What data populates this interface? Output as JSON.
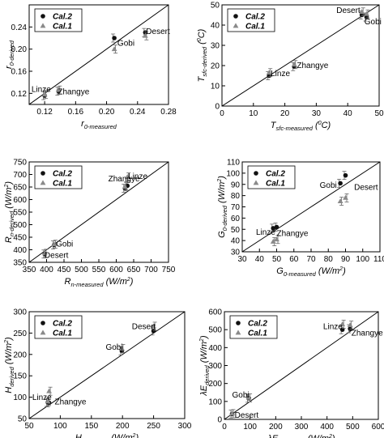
{
  "chart_data": [
    {
      "type": "scatter",
      "xlim": [
        0.1,
        0.28
      ],
      "ylim": [
        0.1,
        0.28
      ],
      "xticks": [
        0.12,
        0.16,
        0.2,
        0.24,
        0.28
      ],
      "yticks": [
        0.12,
        0.16,
        0.2,
        0.24
      ],
      "xticklabels": [
        "0.12",
        "0.16",
        "0.20",
        "0.24",
        "0.28"
      ],
      "yticklabels": [
        "0.12",
        "0.16",
        "0.20",
        "0.24"
      ],
      "xlabel": {
        "main": "r",
        "sub": "0-measured",
        "tail": ""
      },
      "ylabel": {
        "main": "r",
        "sub": "0-derived",
        "tail": ""
      },
      "legend_position": "top-left",
      "one_to_one_line": true,
      "series": [
        {
          "name": "Cal.2",
          "marker": "circle",
          "points": [
            {
              "label": "Linze",
              "x": 0.12,
              "y": 0.116
            },
            {
              "label": "Zhangye",
              "x": 0.138,
              "y": 0.124
            },
            {
              "label": "Gobi",
              "x": 0.21,
              "y": 0.22
            },
            {
              "label": "Desert",
              "x": 0.25,
              "y": 0.23
            }
          ]
        },
        {
          "name": "Cal.1",
          "marker": "triangle",
          "points": [
            {
              "label": "Linze",
              "x": 0.12,
              "y": 0.118
            },
            {
              "label": "Zhangye",
              "x": 0.138,
              "y": 0.126
            },
            {
              "label": "Gobi",
              "x": 0.21,
              "y": 0.2
            },
            {
              "label": "Desert",
              "x": 0.25,
              "y": 0.224
            }
          ]
        }
      ],
      "point_labels": [
        {
          "text": "Linze",
          "x": 0.103,
          "y": 0.123
        },
        {
          "text": "Zhangye",
          "x": 0.137,
          "y": 0.118
        },
        {
          "text": "Gobi",
          "x": 0.214,
          "y": 0.206
        },
        {
          "text": "Desert",
          "x": 0.251,
          "y": 0.227
        }
      ]
    },
    {
      "type": "scatter",
      "xlim": [
        0,
        50
      ],
      "ylim": [
        0,
        50
      ],
      "xticks": [
        0,
        10,
        20,
        30,
        40,
        50
      ],
      "yticks": [
        0,
        10,
        20,
        30,
        40,
        50
      ],
      "xticklabels": [
        "0",
        "10",
        "20",
        "30",
        "40",
        "50"
      ],
      "yticklabels": [
        "0",
        "10",
        "20",
        "30",
        "40",
        "50"
      ],
      "xlabel": {
        "main": "T",
        "sub": "sfc-measured",
        "tail": " (",
        "sup": "0",
        "tail2": "C)"
      },
      "ylabel": {
        "main": "T",
        "sub": "sfc-derived",
        "tail": " (",
        "sup": "0",
        "tail2": "C)"
      },
      "legend_position": "top-left",
      "one_to_one_line": true,
      "series": [
        {
          "name": "Cal.2",
          "marker": "circle",
          "points": [
            {
              "label": "Linze",
              "x": 15,
              "y": 15
            },
            {
              "label": "Zhangye",
              "x": 23,
              "y": 19.5
            },
            {
              "label": "Desert",
              "x": 44.5,
              "y": 45
            },
            {
              "label": "Gobi",
              "x": 46,
              "y": 44
            }
          ]
        },
        {
          "name": "Cal.1",
          "marker": "triangle",
          "points": [
            {
              "label": "Linze",
              "x": 15,
              "y": 16.5
            },
            {
              "label": "Zhangye",
              "x": 23,
              "y": 20.5
            },
            {
              "label": "Desert",
              "x": 44.5,
              "y": 46.5
            },
            {
              "label": "Gobi",
              "x": 46,
              "y": 45.5
            }
          ]
        }
      ],
      "point_labels": [
        {
          "text": "Linze",
          "x": 15.5,
          "y": 14.8
        },
        {
          "text": "Zhangye",
          "x": 23.8,
          "y": 18.9
        },
        {
          "text": "Desert",
          "x": 36.4,
          "y": 46.0
        },
        {
          "text": "Gobi",
          "x": 45.3,
          "y": 40.4
        }
      ]
    },
    {
      "type": "scatter",
      "xlim": [
        350,
        750
      ],
      "ylim": [
        350,
        750
      ],
      "xticks": [
        350,
        400,
        450,
        500,
        550,
        600,
        650,
        700,
        750
      ],
      "yticks": [
        350,
        400,
        450,
        500,
        550,
        600,
        650,
        700,
        750
      ],
      "xticklabels": [
        "350",
        "400",
        "450",
        "500",
        "550",
        "600",
        "650",
        "700",
        "750"
      ],
      "yticklabels": [
        "350",
        "400",
        "450",
        "500",
        "550",
        "600",
        "650",
        "700",
        "750"
      ],
      "xlabel": {
        "main": "R",
        "sub": "n-measured",
        "tail": " (W/m",
        "sup": "2",
        "tail2": ")"
      },
      "ylabel": {
        "main": "R",
        "sub": "n-derived",
        "tail": " (W/m",
        "sup": "2",
        "tail2": ")"
      },
      "legend_position": "top-left",
      "one_to_one_line": true,
      "series": [
        {
          "name": "Cal.2",
          "marker": "circle",
          "points": [
            {
              "label": "Desert",
              "x": 395,
              "y": 383
            },
            {
              "label": "Gobi",
              "x": 422,
              "y": 419
            },
            {
              "label": "Zhangye",
              "x": 625,
              "y": 645
            },
            {
              "label": "Linze",
              "x": 632,
              "y": 655
            }
          ]
        },
        {
          "name": "Cal.1",
          "marker": "triangle",
          "points": [
            {
              "label": "Desert",
              "x": 395,
              "y": 386
            },
            {
              "label": "Gobi",
              "x": 422,
              "y": 422
            },
            {
              "label": "Zhangye",
              "x": 625,
              "y": 651
            },
            {
              "label": "Linze",
              "x": 632,
              "y": 690
            }
          ]
        }
      ],
      "point_labels": [
        {
          "text": "Gobi",
          "x": 427,
          "y": 413
        },
        {
          "text": "Desert",
          "x": 394,
          "y": 367
        },
        {
          "text": "Zhangye",
          "x": 577,
          "y": 672
        },
        {
          "text": "Linze",
          "x": 634,
          "y": 682
        }
      ]
    },
    {
      "type": "scatter",
      "xlim": [
        30,
        110
      ],
      "ylim": [
        30,
        110
      ],
      "xticks": [
        30,
        40,
        50,
        60,
        70,
        80,
        90,
        100,
        110
      ],
      "yticks": [
        30,
        40,
        50,
        60,
        70,
        80,
        90,
        100,
        110
      ],
      "xticklabels": [
        "30",
        "40",
        "50",
        "60",
        "70",
        "80",
        "90",
        "100",
        "110"
      ],
      "yticklabels": [
        "30",
        "40",
        "50",
        "60",
        "70",
        "80",
        "90",
        "100",
        "110"
      ],
      "xlabel": {
        "main": "G",
        "sub": "0-measured",
        "tail": " (W/m",
        "sup": "2",
        "tail2": ")"
      },
      "ylabel": {
        "main": "G",
        "sub": "0-derived",
        "tail": " (W/m",
        "sup": "2",
        "tail2": ")"
      },
      "legend_position": "top-left",
      "one_to_one_line": true,
      "series": [
        {
          "name": "Cal.2",
          "marker": "circle",
          "points": [
            {
              "label": "Linze",
              "x": 48,
              "y": 51
            },
            {
              "label": "Zhangye",
              "x": 50,
              "y": 52
            },
            {
              "label": "Gobi",
              "x": 87,
              "y": 91
            },
            {
              "label": "Desert",
              "x": 90,
              "y": 98
            }
          ]
        },
        {
          "name": "Cal.1",
          "marker": "triangle",
          "points": [
            {
              "label": "Linze",
              "x": 48,
              "y": 39
            },
            {
              "label": "Zhangye",
              "x": 50,
              "y": 41
            },
            {
              "label": "Gobi",
              "x": 87,
              "y": 75
            },
            {
              "label": "Desert",
              "x": 90,
              "y": 78
            }
          ]
        }
      ],
      "point_labels": [
        {
          "text": "Gobi",
          "x": 75,
          "y": 87
        },
        {
          "text": "Desert",
          "x": 95,
          "y": 85
        },
        {
          "text": "Linze",
          "x": 38,
          "y": 45
        },
        {
          "text": "Zhangye",
          "x": 50,
          "y": 44
        }
      ]
    },
    {
      "type": "scatter",
      "xlim": [
        50,
        300
      ],
      "ylim": [
        50,
        300
      ],
      "xticks": [
        50,
        100,
        150,
        200,
        250,
        300
      ],
      "yticks": [
        50,
        100,
        150,
        200,
        250,
        300
      ],
      "xticklabels": [
        "50",
        "100",
        "150",
        "200",
        "250",
        "300"
      ],
      "yticklabels": [
        "50",
        "100",
        "150",
        "200",
        "250",
        "300"
      ],
      "xlabel": {
        "main": "H",
        "sub": "measured",
        "tail": " (W/m",
        "sup": "2",
        "tail2": ")"
      },
      "ylabel": {
        "main": "H",
        "sub": "derived",
        "tail": " (W/m",
        "sup": "2",
        "tail2": ")"
      },
      "legend_position": "top-left",
      "one_to_one_line": true,
      "series": [
        {
          "name": "Cal.2",
          "marker": "circle",
          "points": [
            {
              "label": "Linze",
              "x": 80,
              "y": 88
            },
            {
              "label": "Zhangye",
              "x": 82,
              "y": 87
            },
            {
              "label": "Gobi",
              "x": 199,
              "y": 208
            },
            {
              "label": "Desert",
              "x": 250,
              "y": 255
            }
          ]
        },
        {
          "name": "Cal.1",
          "marker": "triangle",
          "points": [
            {
              "label": "Linze",
              "x": 80,
              "y": 90
            },
            {
              "label": "Zhangye",
              "x": 82,
              "y": 114
            },
            {
              "label": "Gobi",
              "x": 199,
              "y": 214
            },
            {
              "label": "Desert",
              "x": 250,
              "y": 266
            }
          ]
        }
      ],
      "point_labels": [
        {
          "text": "Desert",
          "x": 215,
          "y": 259
        },
        {
          "text": "Gobi",
          "x": 173,
          "y": 211
        },
        {
          "text": "Linze",
          "x": 55,
          "y": 94
        },
        {
          "text": "Zhangye",
          "x": 91,
          "y": 83
        }
      ]
    },
    {
      "type": "scatter",
      "xlim": [
        0,
        600
      ],
      "ylim": [
        0,
        600
      ],
      "xticks": [
        0,
        100,
        200,
        300,
        400,
        500,
        600
      ],
      "yticks": [
        0,
        100,
        200,
        300,
        400,
        500,
        600
      ],
      "xticklabels": [
        "0",
        "100",
        "200",
        "300",
        "400",
        "500",
        "600"
      ],
      "yticklabels": [
        "0",
        "100",
        "200",
        "300",
        "400",
        "500",
        "600"
      ],
      "xlabel": {
        "main": "λE",
        "sub": "measured",
        "tail": " (W/m",
        "sup": "2",
        "tail2": ")"
      },
      "ylabel": {
        "main": "λE",
        "sub": "derived",
        "tail": " (W/m",
        "sup": "2",
        "tail2": ")"
      },
      "legend_position": "top-left",
      "one_to_one_line": true,
      "series": [
        {
          "name": "Cal.2",
          "marker": "circle",
          "points": [
            {
              "label": "Desert",
              "x": 30,
              "y": 30
            },
            {
              "label": "Gobi",
              "x": 95,
              "y": 118
            },
            {
              "label": "Linze",
              "x": 460,
              "y": 500
            },
            {
              "label": "Zhangye",
              "x": 490,
              "y": 505
            }
          ]
        },
        {
          "name": "Cal.1",
          "marker": "triangle",
          "points": [
            {
              "label": "Desert",
              "x": 30,
              "y": 32
            },
            {
              "label": "Gobi",
              "x": 95,
              "y": 120
            },
            {
              "label": "Linze",
              "x": 460,
              "y": 530
            },
            {
              "label": "Zhangye",
              "x": 490,
              "y": 525
            }
          ]
        }
      ],
      "point_labels": [
        {
          "text": "Gobi",
          "x": 30,
          "y": 122
        },
        {
          "text": "Desert",
          "x": 40,
          "y": 8
        },
        {
          "text": "Linze",
          "x": 385,
          "y": 502
        },
        {
          "text": "Zhangye",
          "x": 495,
          "y": 468
        }
      ]
    }
  ]
}
